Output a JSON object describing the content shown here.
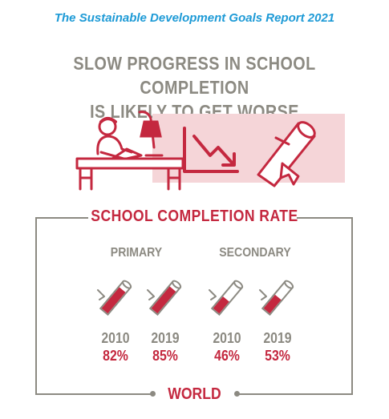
{
  "report_title": "The Sustainable Development Goals Report 2021",
  "headline": {
    "line1": "SLOW PROGRESS IN SCHOOL COMPLETION",
    "line2": "IS LIKELY TO GET WORSE"
  },
  "section_title": "SCHOOL COMPLETION RATE",
  "groups": [
    {
      "label": "PRIMARY",
      "items": [
        {
          "year": "2010",
          "rate": "82%",
          "value": 82
        },
        {
          "year": "2019",
          "rate": "85%",
          "value": 85
        }
      ]
    },
    {
      "label": "SECONDARY",
      "items": [
        {
          "year": "2010",
          "rate": "46%",
          "value": 46
        },
        {
          "year": "2019",
          "rate": "53%",
          "value": 53
        }
      ]
    }
  ],
  "footer_label": "WORLD",
  "colors": {
    "accent_red": "#c4283f",
    "gray": "#8c8a82",
    "blue": "#1d9ad6",
    "pink_panel": "#f5d5d8"
  },
  "icons": [
    "student-studying-icon",
    "lamp-icon",
    "downward-trend-icon",
    "diploma-icon"
  ]
}
